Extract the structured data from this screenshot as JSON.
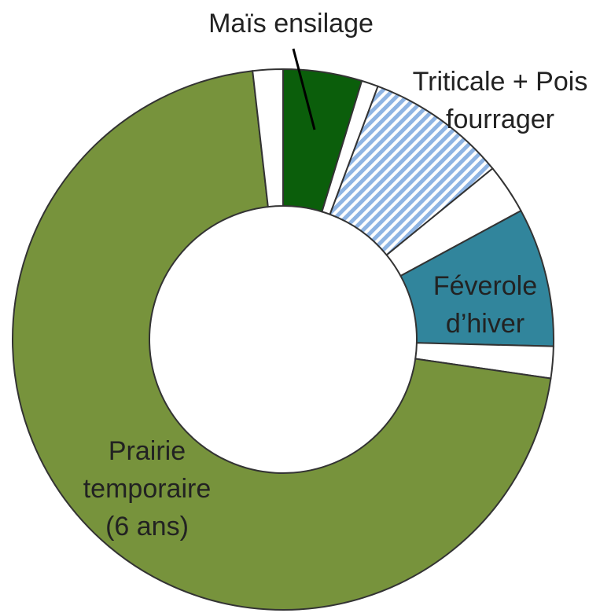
{
  "chart_data": {
    "type": "donut",
    "categories": [
      "Maïs ensilage",
      null,
      "Triticale + Pois fourrager",
      null,
      "Féverole d’hiver",
      null,
      "Prairie temporaire (6 ans)",
      null
    ],
    "values": [
      4.7,
      1,
      8.4,
      3,
      8.3,
      1.9,
      70.9,
      1.8
    ],
    "colors": [
      "#0b5e0b",
      "#ffffff",
      "#8eb4e3",
      "#ffffff",
      "#31859c",
      "#ffffff",
      "#77933c",
      "#ffffff"
    ],
    "hatch": [
      false,
      false,
      true,
      false,
      false,
      false,
      false,
      false
    ]
  }
}
